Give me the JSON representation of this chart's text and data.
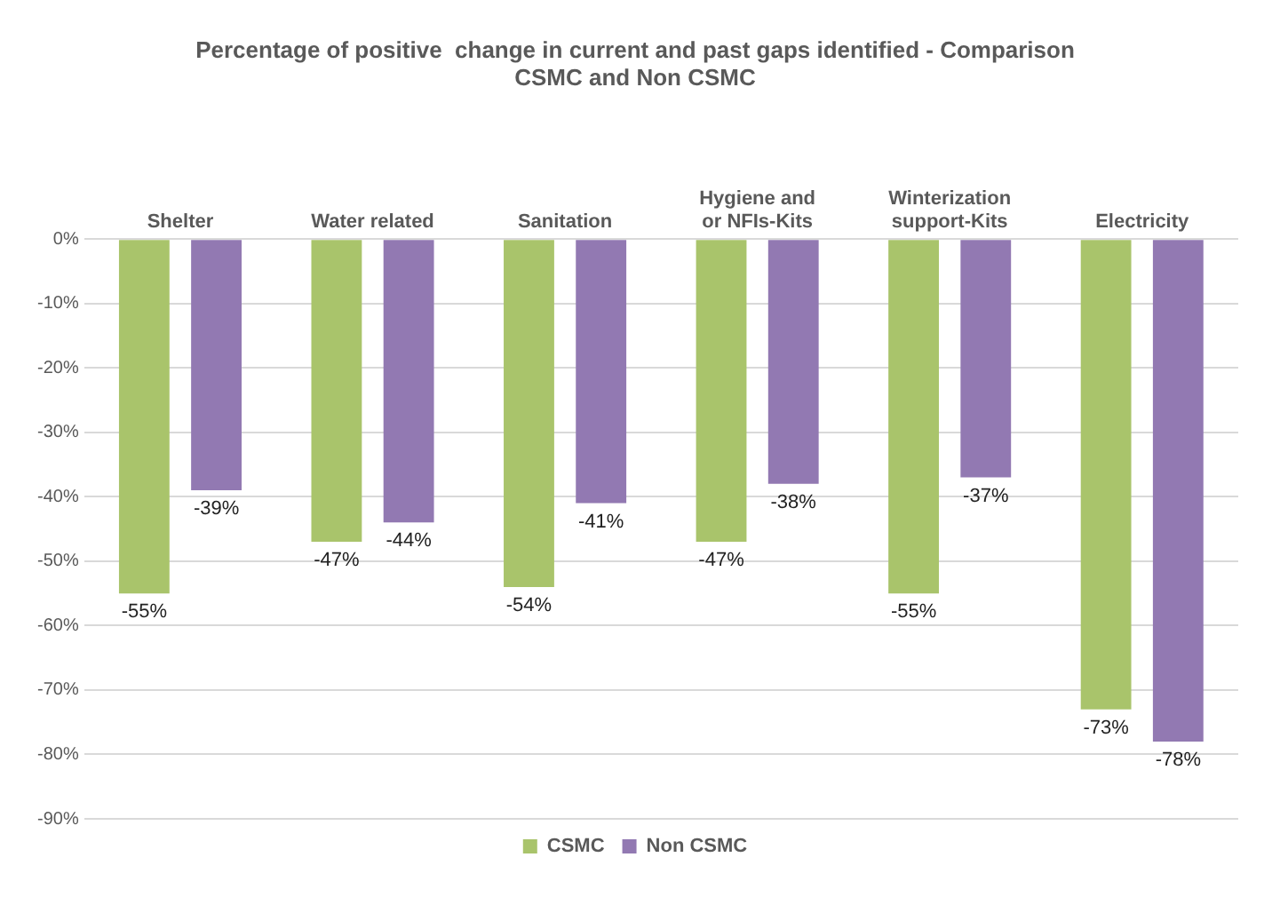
{
  "chart_data": {
    "type": "bar",
    "title": "Percentage of positive  change in current and past gaps identified - Comparison CSMC and Non CSMC",
    "categories": [
      "Shelter",
      "Water related",
      "Sanitation",
      "Hygiene and or NFIs-Kits",
      "Winterization support-Kits",
      "Electricity"
    ],
    "series": [
      {
        "name": "CSMC",
        "color": "#a9c46b",
        "values": [
          -55,
          -47,
          -54,
          -47,
          -55,
          -73
        ],
        "value_labels": [
          "-55%",
          "-47%",
          "-54%",
          "-47%",
          "-55%",
          "-73%"
        ]
      },
      {
        "name": "Non CSMC",
        "color": "#9279b2",
        "values": [
          -39,
          -44,
          -41,
          -38,
          -37,
          -78
        ],
        "value_labels": [
          "-39%",
          "-44%",
          "-41%",
          "-38%",
          "-37%",
          "-78%"
        ]
      }
    ],
    "ylim": [
      -90,
      0
    ],
    "yticks": [
      {
        "value": 0,
        "label": "0%"
      },
      {
        "value": -10,
        "label": "-10%"
      },
      {
        "value": -20,
        "label": "-20%"
      },
      {
        "value": -30,
        "label": "-30%"
      },
      {
        "value": -40,
        "label": "-40%"
      },
      {
        "value": -50,
        "label": "-50%"
      },
      {
        "value": -60,
        "label": "-60%"
      },
      {
        "value": -70,
        "label": "-70%"
      },
      {
        "value": -80,
        "label": "-80%"
      },
      {
        "value": -90,
        "label": "-90%"
      }
    ],
    "grid": "y",
    "legend": "bottom"
  }
}
